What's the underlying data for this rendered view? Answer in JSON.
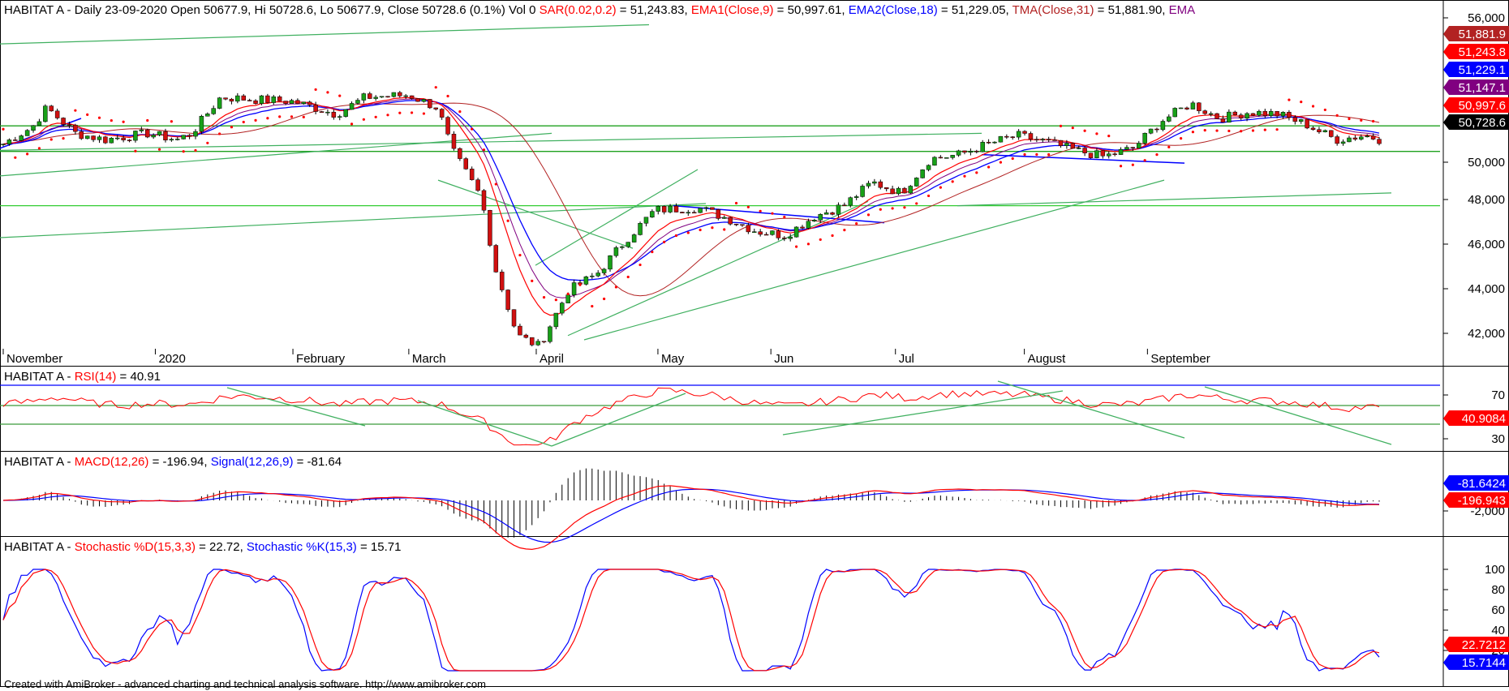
{
  "colors": {
    "up": "#18a018",
    "down": "#d01010",
    "trendline": "#40b060",
    "sar": "#ff0000",
    "ema1": "#ff0000",
    "ema2": "#0000ff",
    "tma": "#b22222",
    "ema3": "#800080",
    "hline": "#1fa01f",
    "rsi_level": "#3a9a3a"
  },
  "price_panel": {
    "title_parts": [
      {
        "text": "HABITAT A - Daily 23-09-2020 Open 50677.9, Hi 50728.6, Lo 50677.9, Close 50728.6 (0.1%) Vol 0 ",
        "color": "#000000"
      },
      {
        "text": "SAR(0.02,0.2)",
        "color": "#ff0000"
      },
      {
        "text": " = 51,243.83, ",
        "color": "#000000"
      },
      {
        "text": "EMA1(Close,9)",
        "color": "#ff0000"
      },
      {
        "text": " = 50,997.61, ",
        "color": "#000000"
      },
      {
        "text": "EMA2(Close,18)",
        "color": "#0000ff"
      },
      {
        "text": " = 51,229.05, ",
        "color": "#000000"
      },
      {
        "text": "TMA(Close,31)",
        "color": "#b22222"
      },
      {
        "text": " = 51,881.90, ",
        "color": "#000000"
      },
      {
        "text": "EMA",
        "color": "#800080"
      }
    ],
    "y_ticks": [
      "56,000",
      "50,000",
      "48,000",
      "46,000",
      "44,000",
      "42,000"
    ],
    "value_boxes": [
      {
        "text": "51,881.9",
        "bg": "#b22222",
        "fg": "#ffffff"
      },
      {
        "text": "51,243.8",
        "bg": "#ff0000",
        "fg": "#ffffff"
      },
      {
        "text": "51,229.1",
        "bg": "#0000ff",
        "fg": "#ffffff"
      },
      {
        "text": "51,147.1",
        "bg": "#800080",
        "fg": "#ffffff"
      },
      {
        "text": "50,997.6",
        "bg": "#ff0000",
        "fg": "#ffffff"
      },
      {
        "text": "50,728.6",
        "bg": "#000000",
        "fg": "#ffffff"
      }
    ]
  },
  "rsi_panel": {
    "title_parts": [
      {
        "text": "HABITAT A - ",
        "color": "#000000"
      },
      {
        "text": "RSI(14)",
        "color": "#ff0000"
      },
      {
        "text": " = 40.91",
        "color": "#000000"
      }
    ],
    "y_ticks": [
      "70",
      "30"
    ],
    "value_boxes": [
      {
        "text": "40.9084",
        "bg": "#ff0000",
        "fg": "#ffffff"
      }
    ]
  },
  "macd_panel": {
    "title_parts": [
      {
        "text": "HABITAT A - ",
        "color": "#000000"
      },
      {
        "text": "MACD(12,26)",
        "color": "#ff0000"
      },
      {
        "text": " = -196.94, ",
        "color": "#000000"
      },
      {
        "text": "Signal(12,26,9)",
        "color": "#0000ff"
      },
      {
        "text": " = -81.64",
        "color": "#000000"
      }
    ],
    "y_ticks": [
      "-2,000"
    ],
    "value_boxes": [
      {
        "text": "-81.6424",
        "bg": "#0000ff",
        "fg": "#ffffff"
      },
      {
        "text": "-196.943",
        "bg": "#ff0000",
        "fg": "#ffffff"
      }
    ]
  },
  "stoch_panel": {
    "title_parts": [
      {
        "text": "HABITAT A - ",
        "color": "#000000"
      },
      {
        "text": "Stochastic %D(15,3,3)",
        "color": "#ff0000"
      },
      {
        "text": " = 22.72, ",
        "color": "#000000"
      },
      {
        "text": "Stochastic %K(15,3)",
        "color": "#0000ff"
      },
      {
        "text": " = 15.71",
        "color": "#000000"
      }
    ],
    "y_ticks": [
      "100",
      "80",
      "60",
      "40",
      "20"
    ],
    "value_boxes": [
      {
        "text": "22.7212",
        "bg": "#ff0000",
        "fg": "#ffffff"
      },
      {
        "text": "15.7144",
        "bg": "#0000ff",
        "fg": "#ffffff"
      }
    ]
  },
  "x_axis_labels": [
    "November",
    "2020",
    "February",
    "March",
    "April",
    "May",
    "Jun",
    "Jul",
    "August",
    "September"
  ],
  "footer": "Created with AmiBroker - advanced charting and technical analysis software. http://www.amibroker.com",
  "chart_data": {
    "type": "candlestick",
    "ylim": [
      40500,
      56500
    ],
    "series_names": [
      "SAR(0.02,0.2)",
      "EMA1(Close,9)",
      "EMA2(Close,18)",
      "TMA(Close,31)"
    ],
    "close_path": [
      {
        "x": 0,
        "y": 50500
      },
      {
        "x": 0.02,
        "y": 51300
      },
      {
        "x": 0.03,
        "y": 52200
      },
      {
        "x": 0.05,
        "y": 51000
      },
      {
        "x": 0.07,
        "y": 50700
      },
      {
        "x": 0.1,
        "y": 51000
      },
      {
        "x": 0.12,
        "y": 50700
      },
      {
        "x": 0.13,
        "y": 51000
      },
      {
        "x": 0.15,
        "y": 52700
      },
      {
        "x": 0.17,
        "y": 52600
      },
      {
        "x": 0.2,
        "y": 52500
      },
      {
        "x": 0.23,
        "y": 51900
      },
      {
        "x": 0.25,
        "y": 52700
      },
      {
        "x": 0.28,
        "y": 52800
      },
      {
        "x": 0.3,
        "y": 52200
      },
      {
        "x": 0.31,
        "y": 50200
      },
      {
        "x": 0.33,
        "y": 48000
      },
      {
        "x": 0.34,
        "y": 44600
      },
      {
        "x": 0.355,
        "y": 41500
      },
      {
        "x": 0.37,
        "y": 41000
      },
      {
        "x": 0.39,
        "y": 43600
      },
      {
        "x": 0.41,
        "y": 44400
      },
      {
        "x": 0.43,
        "y": 46000
      },
      {
        "x": 0.45,
        "y": 47400
      },
      {
        "x": 0.48,
        "y": 47500
      },
      {
        "x": 0.5,
        "y": 47000
      },
      {
        "x": 0.52,
        "y": 46400
      },
      {
        "x": 0.54,
        "y": 46200
      },
      {
        "x": 0.56,
        "y": 47100
      },
      {
        "x": 0.58,
        "y": 47600
      },
      {
        "x": 0.6,
        "y": 48700
      },
      {
        "x": 0.62,
        "y": 48200
      },
      {
        "x": 0.64,
        "y": 49800
      },
      {
        "x": 0.66,
        "y": 50000
      },
      {
        "x": 0.68,
        "y": 50500
      },
      {
        "x": 0.7,
        "y": 50900
      },
      {
        "x": 0.72,
        "y": 50600
      },
      {
        "x": 0.74,
        "y": 50200
      },
      {
        "x": 0.76,
        "y": 49900
      },
      {
        "x": 0.78,
        "y": 50300
      },
      {
        "x": 0.8,
        "y": 51600
      },
      {
        "x": 0.82,
        "y": 52400
      },
      {
        "x": 0.84,
        "y": 51700
      },
      {
        "x": 0.86,
        "y": 52000
      },
      {
        "x": 0.88,
        "y": 51900
      },
      {
        "x": 0.9,
        "y": 51400
      },
      {
        "x": 0.92,
        "y": 50700
      },
      {
        "x": 0.94,
        "y": 50900
      },
      {
        "x": 0.95,
        "y": 50728.6
      }
    ]
  }
}
